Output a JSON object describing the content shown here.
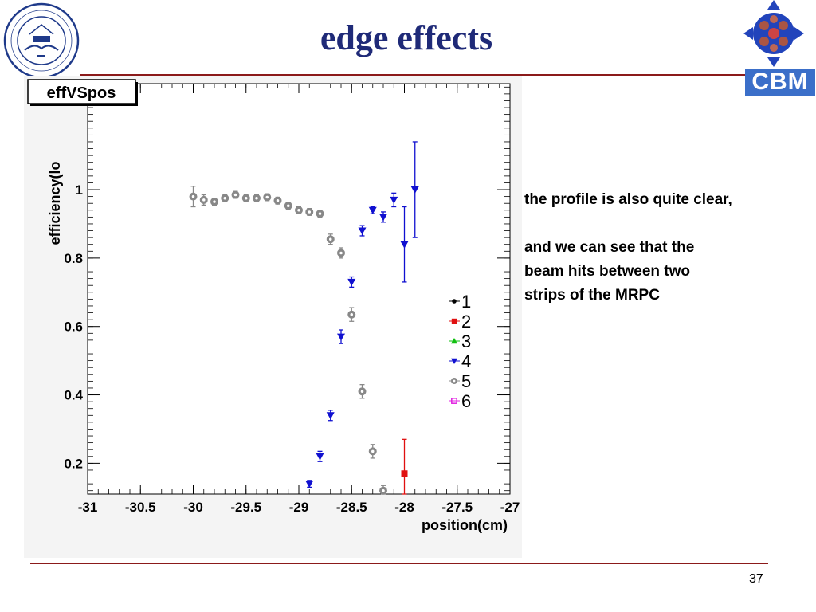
{
  "slide": {
    "title": "edge effects",
    "page_number": "37",
    "text_lines": [
      "the profile is also quite clear,",
      "and we can see that the",
      "beam hits between two",
      "strips of the MRPC"
    ],
    "logo_right_label": "CBM"
  },
  "chart_data": {
    "type": "scatter",
    "title": "effVSpos",
    "xlabel": "position(cm)",
    "ylabel": "efficiency(lo",
    "xlim": [
      -31,
      -27
    ],
    "ylim": [
      0.11,
      1.31
    ],
    "xticks": [
      "-31",
      "-30.5",
      "-30",
      "-29.5",
      "-29",
      "-28.5",
      "-28",
      "-27.5",
      "-27"
    ],
    "yticks": [
      "0.2",
      "0.4",
      "0.6",
      "0.8",
      "1"
    ],
    "legend_position": "right",
    "series": [
      {
        "name": "1",
        "color": "#000000",
        "marker": "circle",
        "points": []
      },
      {
        "name": "2",
        "color": "#e01010",
        "marker": "square",
        "points": [
          {
            "x": -28.0,
            "y": 0.17,
            "err": 0.1
          }
        ]
      },
      {
        "name": "3",
        "color": "#10c010",
        "marker": "triangle-up",
        "points": []
      },
      {
        "name": "4",
        "color": "#1010d0",
        "marker": "triangle-down",
        "points": [
          {
            "x": -28.9,
            "y": 0.14,
            "err": 0.01
          },
          {
            "x": -28.8,
            "y": 0.22,
            "err": 0.015
          },
          {
            "x": -28.7,
            "y": 0.34,
            "err": 0.015
          },
          {
            "x": -28.6,
            "y": 0.57,
            "err": 0.02
          },
          {
            "x": -28.5,
            "y": 0.73,
            "err": 0.015
          },
          {
            "x": -28.4,
            "y": 0.88,
            "err": 0.015
          },
          {
            "x": -28.3,
            "y": 0.94,
            "err": 0.01
          },
          {
            "x": -28.2,
            "y": 0.92,
            "err": 0.015
          },
          {
            "x": -28.1,
            "y": 0.97,
            "err": 0.02
          },
          {
            "x": -28.0,
            "y": 0.84,
            "err": 0.11
          },
          {
            "x": -27.9,
            "y": 1.0,
            "err": 0.14
          }
        ]
      },
      {
        "name": "5",
        "color": "#888888",
        "marker": "circle",
        "points": [
          {
            "x": -30.0,
            "y": 0.98,
            "err": 0.03
          },
          {
            "x": -29.9,
            "y": 0.97,
            "err": 0.015
          },
          {
            "x": -29.8,
            "y": 0.965,
            "err": 0.01
          },
          {
            "x": -29.7,
            "y": 0.975,
            "err": 0.01
          },
          {
            "x": -29.6,
            "y": 0.985,
            "err": 0.01
          },
          {
            "x": -29.5,
            "y": 0.975,
            "err": 0.01
          },
          {
            "x": -29.4,
            "y": 0.975,
            "err": 0.01
          },
          {
            "x": -29.3,
            "y": 0.978,
            "err": 0.01
          },
          {
            "x": -29.2,
            "y": 0.968,
            "err": 0.01
          },
          {
            "x": -29.1,
            "y": 0.953,
            "err": 0.01
          },
          {
            "x": -29.0,
            "y": 0.94,
            "err": 0.01
          },
          {
            "x": -28.9,
            "y": 0.935,
            "err": 0.01
          },
          {
            "x": -28.8,
            "y": 0.93,
            "err": 0.01
          },
          {
            "x": -28.7,
            "y": 0.855,
            "err": 0.015
          },
          {
            "x": -28.6,
            "y": 0.815,
            "err": 0.015
          },
          {
            "x": -28.5,
            "y": 0.635,
            "err": 0.02
          },
          {
            "x": -28.4,
            "y": 0.41,
            "err": 0.02
          },
          {
            "x": -28.3,
            "y": 0.235,
            "err": 0.02
          },
          {
            "x": -28.2,
            "y": 0.12,
            "err": 0.015
          }
        ]
      },
      {
        "name": "6",
        "color": "#e020e0",
        "marker": "open-square",
        "points": []
      }
    ]
  }
}
